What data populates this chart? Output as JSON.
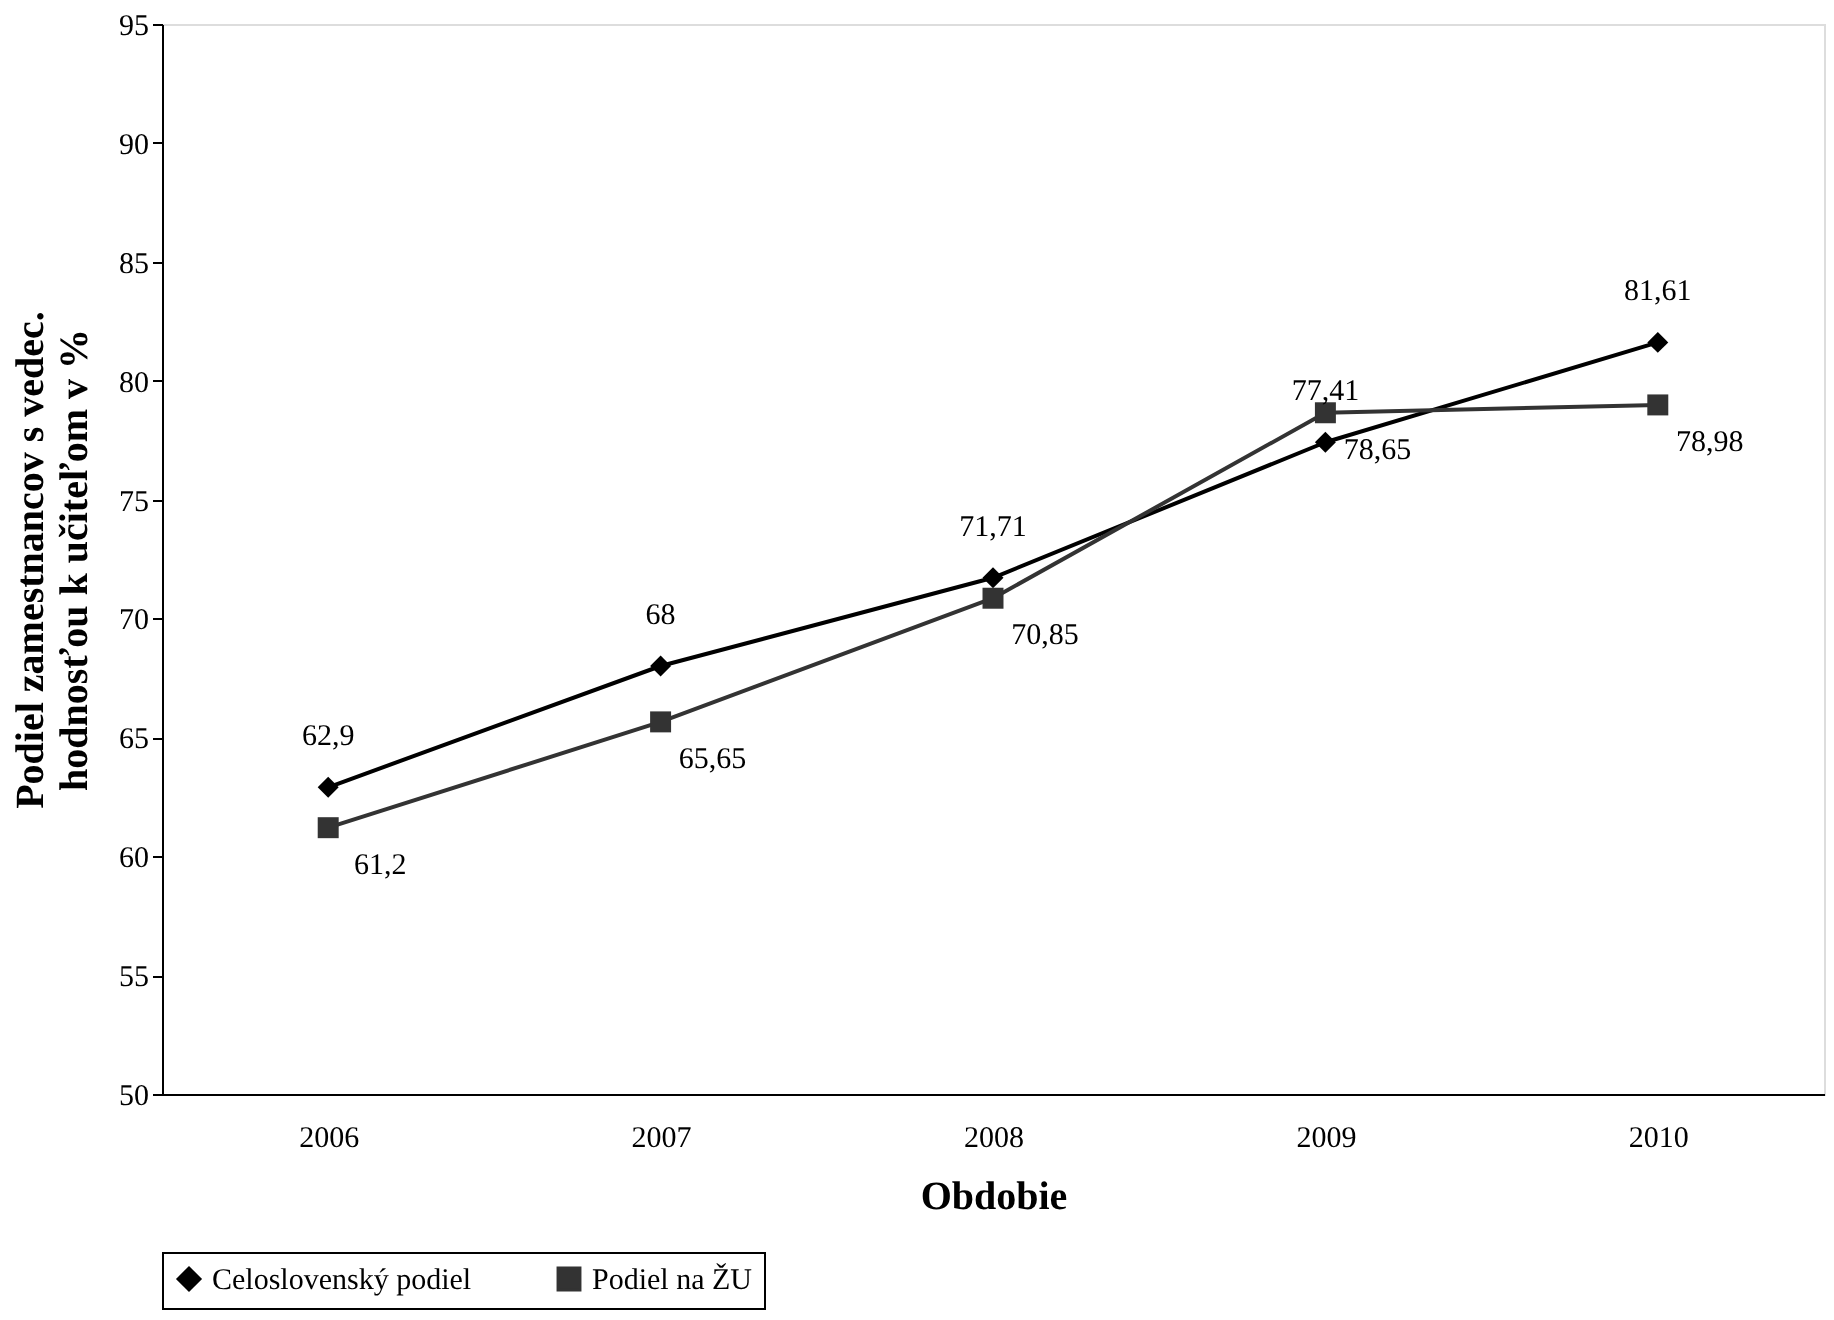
{
  "chart_data": {
    "type": "line",
    "xlabel": "Obdobie",
    "ylabel": "Podiel zamestnancov s vedec.\nhodnosťou k učiteľom v %",
    "categories": [
      "2006",
      "2007",
      "2008",
      "2009",
      "2010"
    ],
    "ylim": [
      50,
      95
    ],
    "yticks": [
      50,
      55,
      60,
      65,
      70,
      75,
      80,
      85,
      90,
      95
    ],
    "grid": false,
    "legend": "bottom",
    "series": [
      {
        "name": "Celoslovenský podiel",
        "color": "#000000",
        "marker": "diamond",
        "values": [
          62.9,
          68,
          71.71,
          77.41,
          81.61
        ],
        "value_labels": [
          "62,9",
          "68",
          "71,71",
          "77,41",
          "81,61"
        ]
      },
      {
        "name": "Podiel na ŽU",
        "color": "#333333",
        "marker": "square",
        "values": [
          61.2,
          65.65,
          70.85,
          78.65,
          78.98
        ],
        "value_labels": [
          "61,2",
          "65,65",
          "70,85",
          "78,65",
          "78,98"
        ]
      }
    ]
  }
}
